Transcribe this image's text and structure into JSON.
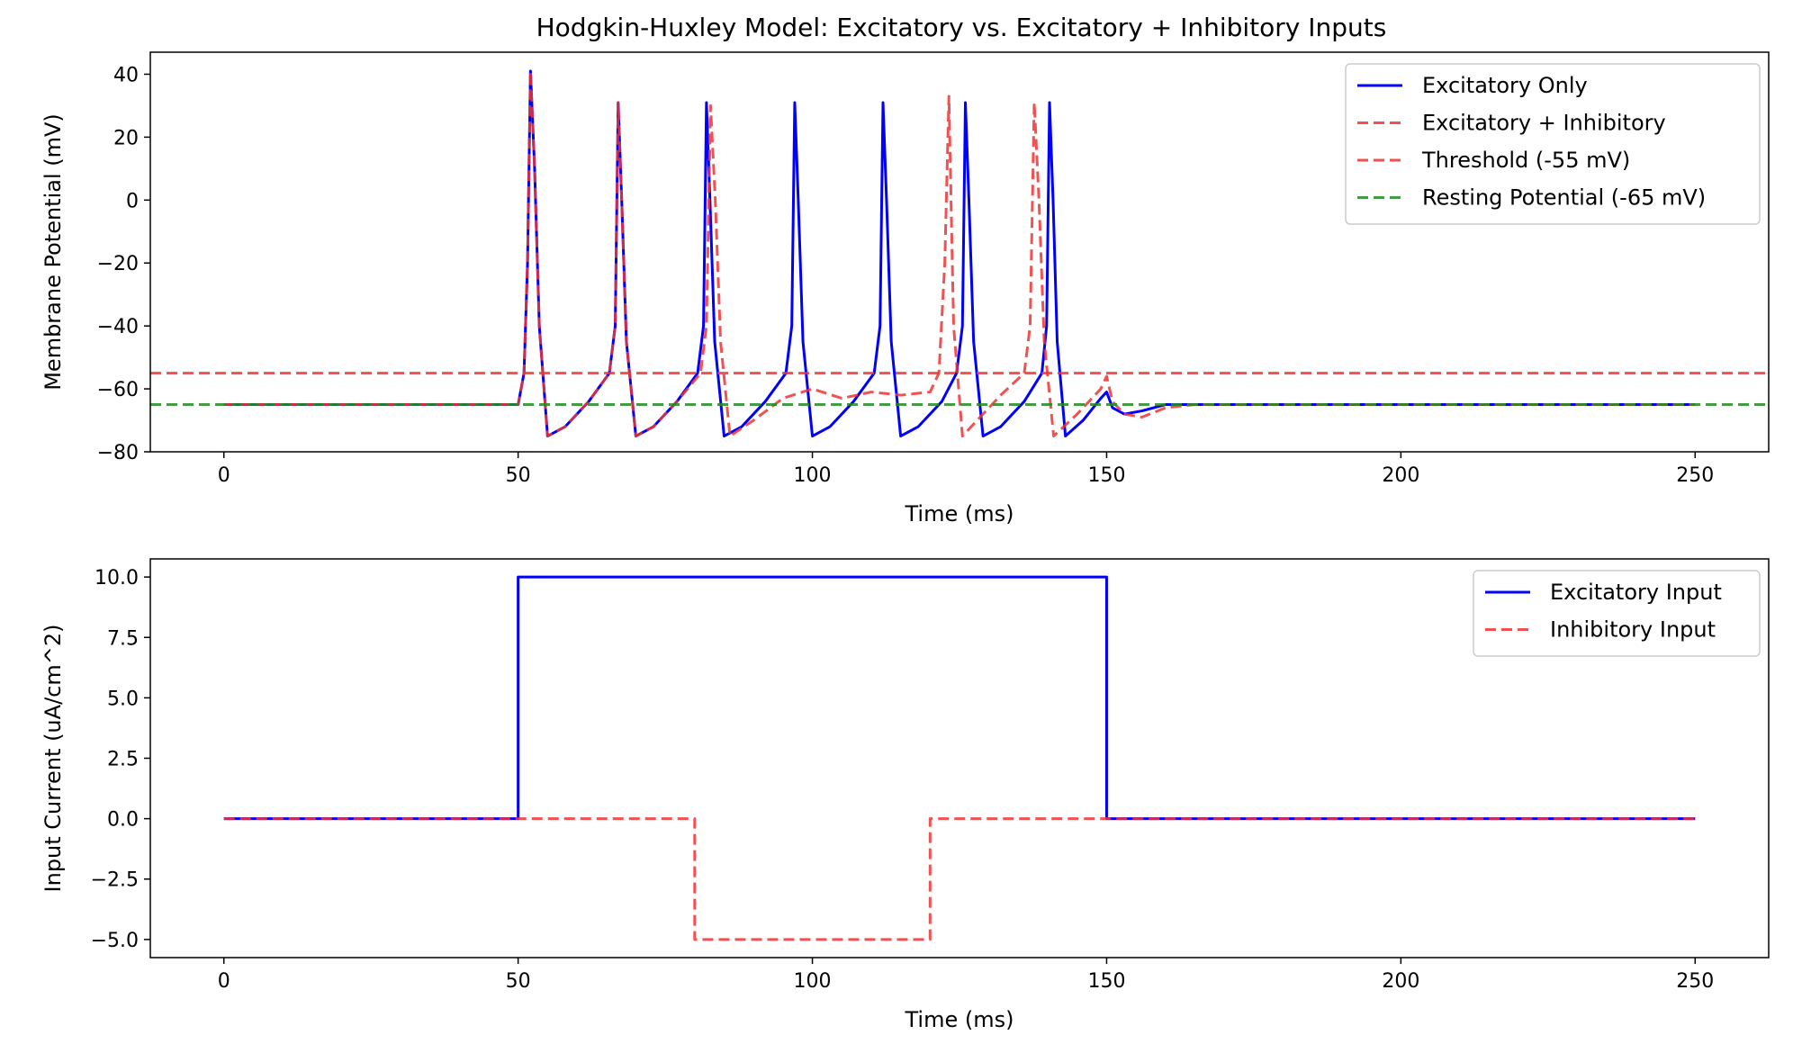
{
  "chart_data": [
    {
      "type": "line",
      "title": "Hodgkin-Huxley Model: Excitatory vs. Excitatory + Inhibitory Inputs",
      "xlabel": "Time (ms)",
      "ylabel": "Membrane Potential (mV)",
      "xlim": [
        -12.5,
        262.5
      ],
      "ylim": [
        -80,
        47
      ],
      "xticks": [
        0,
        50,
        100,
        150,
        200,
        250
      ],
      "yticks": [
        40,
        20,
        0,
        -20,
        -40,
        -60,
        -80
      ],
      "grid": false,
      "legend_position": "top-right",
      "series": [
        {
          "name": "Excitatory Only",
          "color": "#0000ff",
          "dash": "solid",
          "x": [
            0,
            50,
            51,
            51.6,
            52.1,
            52.8,
            53.6,
            55.0,
            58,
            62,
            65.5,
            66.5,
            67.0,
            67.6,
            68.4,
            70.0,
            73,
            77,
            80.5,
            81.5,
            82.0,
            82.6,
            83.4,
            85.0,
            88,
            92,
            95.5,
            96.5,
            97.0,
            97.6,
            98.4,
            100.0,
            103,
            107,
            110.5,
            111.5,
            112.0,
            112.6,
            113.4,
            115.0,
            118,
            122,
            124.5,
            125.5,
            126.0,
            126.6,
            127.4,
            129.0,
            132,
            136,
            139.0,
            139.8,
            140.3,
            140.9,
            141.6,
            143.0,
            146,
            149,
            150,
            151,
            153,
            156,
            160,
            165,
            170,
            250
          ],
          "y": [
            -65,
            -65,
            -55,
            -20,
            41,
            10,
            -40,
            -75,
            -72,
            -64,
            -55,
            -40,
            31,
            0,
            -45,
            -75,
            -72,
            -64,
            -55,
            -40,
            31,
            0,
            -45,
            -75,
            -72,
            -64,
            -55,
            -40,
            31,
            0,
            -45,
            -75,
            -72,
            -64,
            -55,
            -40,
            31,
            0,
            -45,
            -75,
            -72,
            -64,
            -55,
            -40,
            31,
            0,
            -45,
            -75,
            -72,
            -64,
            -55,
            -40,
            31,
            0,
            -45,
            -75,
            -70,
            -63,
            -61,
            -66,
            -68,
            -67,
            -65,
            -65,
            -65,
            -65
          ]
        },
        {
          "name": "Excitatory + Inhibitory",
          "color": "#ee3333",
          "dash": "dashed",
          "x": [
            0,
            50,
            51,
            51.6,
            52.1,
            52.8,
            53.6,
            55.0,
            58,
            62,
            65.5,
            66.5,
            67.0,
            67.6,
            68.4,
            70.0,
            73,
            77,
            81.0,
            82.0,
            82.7,
            83.5,
            84.4,
            86.0,
            90,
            95,
            100,
            105,
            110,
            115,
            120,
            121.5,
            122.5,
            123.2,
            124.0,
            125.5,
            128,
            132,
            136,
            137.0,
            137.7,
            138.5,
            139.4,
            141.0,
            145,
            149,
            150,
            151,
            153,
            156,
            160,
            165,
            170,
            250
          ],
          "y": [
            -65,
            -65,
            -55,
            -20,
            41,
            10,
            -40,
            -75,
            -72,
            -64,
            -55,
            -40,
            31,
            0,
            -45,
            -75,
            -72,
            -64,
            -55,
            -40,
            30,
            0,
            -45,
            -75,
            -70,
            -63,
            -60,
            -63,
            -61,
            -62,
            -61,
            -55,
            -20,
            33,
            -40,
            -75,
            -70,
            -62,
            -55,
            -40,
            31,
            0,
            -45,
            -75,
            -68,
            -60,
            -56,
            -64,
            -68,
            -69,
            -66,
            -65,
            -65,
            -65
          ]
        },
        {
          "name": "Threshold (-55 mV)",
          "color": "#ee3333",
          "dash": "dashed",
          "x": [
            -12.5,
            262.5
          ],
          "y": [
            -55,
            -55
          ]
        },
        {
          "name": "Resting Potential (-65 mV)",
          "color": "#228B22",
          "dash": "dashed",
          "x": [
            -12.5,
            262.5
          ],
          "y": [
            -65,
            -65
          ]
        }
      ]
    },
    {
      "type": "line",
      "title": "",
      "xlabel": "Time (ms)",
      "ylabel": "Input Current (uA/cm^2)",
      "xlim": [
        -12.5,
        262.5
      ],
      "ylim": [
        -5.75,
        10.75
      ],
      "xticks": [
        0,
        50,
        100,
        150,
        200,
        250
      ],
      "yticks": [
        10.0,
        7.5,
        5.0,
        2.5,
        0.0,
        -2.5,
        -5.0
      ],
      "grid": false,
      "legend_position": "top-right",
      "series": [
        {
          "name": "Excitatory Input",
          "color": "#0000ff",
          "dash": "solid",
          "x": [
            0,
            50,
            50,
            150,
            150,
            250
          ],
          "y": [
            0,
            0,
            10,
            10,
            0,
            0
          ]
        },
        {
          "name": "Inhibitory Input",
          "color": "#ee3333",
          "dash": "dashed",
          "x": [
            0,
            80,
            80,
            120,
            120,
            250
          ],
          "y": [
            0,
            0,
            -5,
            -5,
            0,
            0
          ]
        }
      ]
    }
  ]
}
